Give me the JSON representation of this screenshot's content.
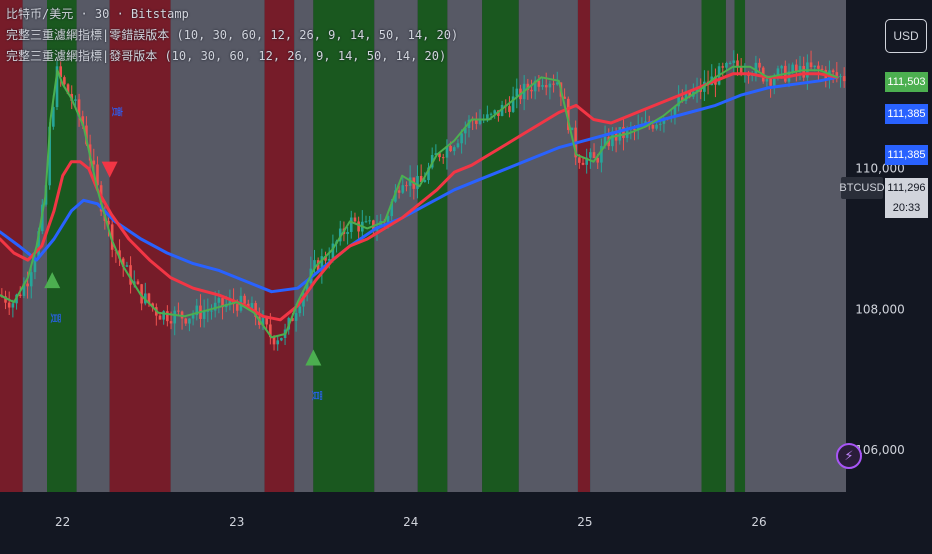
{
  "header": {
    "title_line": "比特币/美元 · 30 · Bitstamp",
    "indicator_1": "完整三重濾網指標|零錯誤版本 (10, 30, 60, 12, 26, 9, 14, 50, 14, 20)",
    "indicator_2": "完整三重濾網指標|發哥版本 (10, 30, 60, 12, 26, 9, 14, 50, 14, 20)"
  },
  "currency_button": "USD",
  "price_tags": [
    {
      "label": "111,503",
      "bg": "#4caf50",
      "color": "#ffffff"
    },
    {
      "label": "111,385",
      "bg": "#2962ff",
      "color": "#ffffff"
    },
    {
      "label": "111,385",
      "bg": "#2962ff",
      "color": "#ffffff"
    },
    {
      "label": "111,296",
      "bg": "#d1d4dc",
      "color": "#131722"
    },
    {
      "label": "20:33",
      "bg": "#d1d4dc",
      "color": "#131722"
    }
  ],
  "symbol_tag": "BTCUSD",
  "bolt_icon": "lightning-icon",
  "chart_data": {
    "type": "line",
    "symbol": "BTCUSD",
    "interval": "30",
    "exchange": "Bitstamp",
    "x_ticks": [
      "22",
      "23",
      "24",
      "25",
      "26"
    ],
    "x_range": [
      21.64,
      26.5
    ],
    "ylim": [
      105400,
      112400
    ],
    "y_ticks": [
      106000,
      108000,
      110000
    ],
    "y_tick_labels": [
      "106,000",
      "108,000",
      "110,000"
    ],
    "grid": false,
    "colors": {
      "bull_bg": "#1b5e20",
      "bear_bg": "#7f1d2a",
      "neutral_bg": "#5d606b",
      "up_candle": "#26a69a",
      "down_candle": "#ef5350",
      "fast_line": "#4caf50",
      "mid_line": "#f23645",
      "slow_line": "#2962ff"
    },
    "background_zones": [
      {
        "from": 21.64,
        "to": 21.77,
        "state": "bear"
      },
      {
        "from": 21.77,
        "to": 21.91,
        "state": "neutral"
      },
      {
        "from": 21.91,
        "to": 22.08,
        "state": "bull"
      },
      {
        "from": 22.08,
        "to": 22.27,
        "state": "neutral"
      },
      {
        "from": 22.27,
        "to": 22.62,
        "state": "bear"
      },
      {
        "from": 22.62,
        "to": 23.16,
        "state": "neutral"
      },
      {
        "from": 23.16,
        "to": 23.33,
        "state": "bear"
      },
      {
        "from": 23.33,
        "to": 23.44,
        "state": "neutral"
      },
      {
        "from": 23.44,
        "to": 23.79,
        "state": "bull"
      },
      {
        "from": 23.79,
        "to": 24.04,
        "state": "neutral"
      },
      {
        "from": 24.04,
        "to": 24.21,
        "state": "bull"
      },
      {
        "from": 24.21,
        "to": 24.41,
        "state": "neutral"
      },
      {
        "from": 24.41,
        "to": 24.62,
        "state": "bull"
      },
      {
        "from": 24.62,
        "to": 24.96,
        "state": "neutral"
      },
      {
        "from": 24.96,
        "to": 25.03,
        "state": "bear"
      },
      {
        "from": 25.03,
        "to": 25.67,
        "state": "neutral"
      },
      {
        "from": 25.67,
        "to": 25.81,
        "state": "bull"
      },
      {
        "from": 25.81,
        "to": 25.86,
        "state": "neutral"
      },
      {
        "from": 25.86,
        "to": 25.92,
        "state": "bull"
      },
      {
        "from": 25.92,
        "to": 26.5,
        "state": "neutral"
      }
    ],
    "series": [
      {
        "name": "",
        "color": "#4caf50",
        "x": [
          21.64,
          21.72,
          21.8,
          21.85,
          21.9,
          21.93,
          21.97,
          22.0,
          22.05,
          22.12,
          22.2,
          22.28,
          22.35,
          22.45,
          22.55,
          22.7,
          22.85,
          23.0,
          23.1,
          23.2,
          23.28,
          23.35,
          23.45,
          23.55,
          23.65,
          23.75,
          23.85,
          23.95,
          24.05,
          24.15,
          24.25,
          24.35,
          24.45,
          24.55,
          24.65,
          24.75,
          24.85,
          24.95,
          25.05,
          25.15,
          25.25,
          25.35,
          25.45,
          25.55,
          25.65,
          25.75,
          25.85,
          25.95,
          26.05,
          26.15,
          26.25,
          26.35,
          26.45
        ],
        "y": [
          108200,
          108100,
          108450,
          108900,
          109600,
          110700,
          111400,
          111200,
          111000,
          110600,
          109700,
          109000,
          108600,
          108200,
          107950,
          107900,
          108000,
          108100,
          107950,
          107600,
          107650,
          108100,
          108600,
          108850,
          109250,
          109150,
          109250,
          109900,
          109750,
          110200,
          110400,
          110700,
          110700,
          110900,
          111100,
          111300,
          111250,
          110200,
          110100,
          110450,
          110500,
          110600,
          110750,
          110950,
          111100,
          111300,
          111450,
          111450,
          111300,
          111350,
          111400,
          111400,
          111300
        ]
      },
      {
        "name": "",
        "color": "#f23645",
        "x": [
          21.64,
          21.72,
          21.8,
          21.88,
          21.95,
          22.0,
          22.05,
          22.1,
          22.15,
          22.2,
          22.28,
          22.38,
          22.5,
          22.62,
          22.75,
          22.9,
          23.05,
          23.15,
          23.25,
          23.35,
          23.45,
          23.55,
          23.65,
          23.75,
          23.85,
          23.95,
          24.05,
          24.15,
          24.25,
          24.35,
          24.45,
          24.55,
          24.65,
          24.75,
          24.85,
          24.95,
          25.05,
          25.15,
          25.25,
          25.35,
          25.45,
          25.55,
          25.65,
          25.75,
          25.85,
          25.95,
          26.05,
          26.15,
          26.25,
          26.35,
          26.45
        ],
        "y": [
          109000,
          108800,
          108700,
          108900,
          109400,
          109900,
          110100,
          110100,
          110000,
          109700,
          109350,
          109000,
          108700,
          108450,
          108300,
          108200,
          108050,
          107900,
          107850,
          108050,
          108400,
          108700,
          108900,
          109000,
          109150,
          109300,
          109500,
          109700,
          109950,
          110050,
          110200,
          110350,
          110500,
          110650,
          110800,
          110900,
          110700,
          110650,
          110750,
          110850,
          110950,
          111050,
          111150,
          111250,
          111350,
          111350,
          111300,
          111300,
          111350,
          111350,
          111300
        ]
      },
      {
        "name": "",
        "color": "#2962ff",
        "x": [
          21.64,
          21.75,
          21.85,
          21.95,
          22.05,
          22.12,
          22.2,
          22.3,
          22.45,
          22.6,
          22.75,
          22.9,
          23.05,
          23.2,
          23.35,
          23.5,
          23.65,
          23.8,
          23.95,
          24.1,
          24.25,
          24.4,
          24.55,
          24.7,
          24.85,
          25.0,
          25.15,
          25.3,
          25.45,
          25.6,
          25.75,
          25.9,
          26.05,
          26.2,
          26.35,
          26.45
        ],
        "y": [
          109100,
          108900,
          108700,
          109000,
          109400,
          109550,
          109500,
          109250,
          109000,
          108800,
          108650,
          108550,
          108400,
          108250,
          108300,
          108600,
          108900,
          109150,
          109300,
          109500,
          109700,
          109850,
          110000,
          110150,
          110300,
          110400,
          110500,
          110600,
          110700,
          110800,
          110900,
          111050,
          111150,
          111200,
          111250,
          111300
        ]
      }
    ],
    "signals": [
      {
        "x": 21.94,
        "y": 108300,
        "type": "buy",
        "label": "買"
      },
      {
        "x": 22.27,
        "y": 110100,
        "type": "sell",
        "label": "賣"
      },
      {
        "x": 23.44,
        "y": 107200,
        "type": "buy",
        "label": "買"
      }
    ]
  }
}
